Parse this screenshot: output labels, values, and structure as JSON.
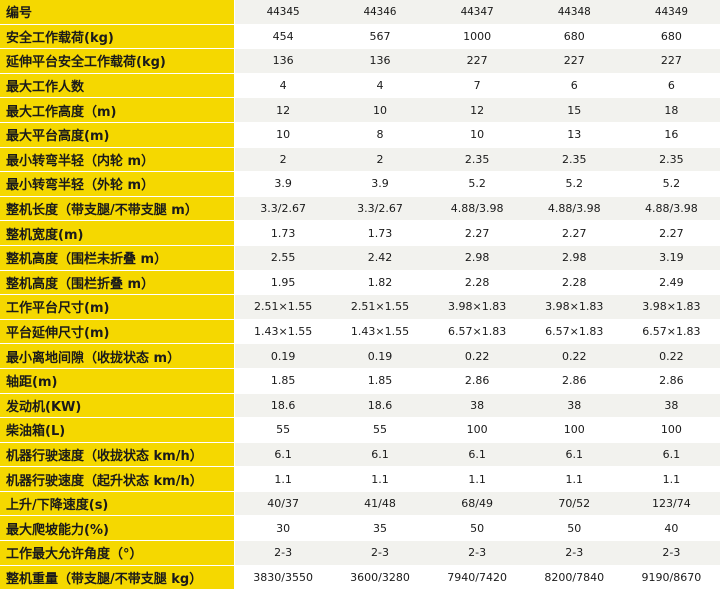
{
  "table": {
    "rows": [
      {
        "label": "编号",
        "values": [
          "44345",
          "44346",
          "44347",
          "44348",
          "44349"
        ]
      },
      {
        "label": "安全工作载荷(kg)",
        "values": [
          "454",
          "567",
          "1000",
          "680",
          "680"
        ]
      },
      {
        "label": "延伸平台安全工作载荷(kg)",
        "values": [
          "136",
          "136",
          "227",
          "227",
          "227"
        ]
      },
      {
        "label": "最大工作人数",
        "values": [
          "4",
          "4",
          "7",
          "6",
          "6"
        ]
      },
      {
        "label": "最大工作高度（m)",
        "values": [
          "12",
          "10",
          "12",
          "15",
          "18"
        ]
      },
      {
        "label": "最大平台高度(m)",
        "values": [
          "10",
          "8",
          "10",
          "13",
          "16"
        ]
      },
      {
        "label": "最小转弯半轻（内轮 m）",
        "values": [
          "2",
          "2",
          "2.35",
          "2.35",
          "2.35"
        ]
      },
      {
        "label": "最小转弯半轻（外轮 m）",
        "values": [
          "3.9",
          "3.9",
          "5.2",
          "5.2",
          "5.2"
        ]
      },
      {
        "label": "整机长度（带支腿/不带支腿 m）",
        "values": [
          "3.3/2.67",
          "3.3/2.67",
          "4.88/3.98",
          "4.88/3.98",
          "4.88/3.98"
        ]
      },
      {
        "label": "整机宽度(m)",
        "values": [
          "1.73",
          "1.73",
          "2.27",
          "2.27",
          "2.27"
        ]
      },
      {
        "label": "整机高度（围栏未折叠 m）",
        "values": [
          "2.55",
          "2.42",
          "2.98",
          "2.98",
          "3.19"
        ]
      },
      {
        "label": "整机高度（围栏折叠 m）",
        "values": [
          "1.95",
          "1.82",
          "2.28",
          "2.28",
          "2.49"
        ]
      },
      {
        "label": "工作平台尺寸(m)",
        "values": [
          "2.51×1.55",
          "2.51×1.55",
          "3.98×1.83",
          "3.98×1.83",
          "3.98×1.83"
        ]
      },
      {
        "label": "平台延伸尺寸(m)",
        "values": [
          "1.43×1.55",
          "1.43×1.55",
          "6.57×1.83",
          "6.57×1.83",
          "6.57×1.83"
        ]
      },
      {
        "label": "最小离地间隙（收拢状态 m）",
        "values": [
          "0.19",
          "0.19",
          "0.22",
          "0.22",
          "0.22"
        ]
      },
      {
        "label": "轴距(m)",
        "values": [
          "1.85",
          "1.85",
          "2.86",
          "2.86",
          "2.86"
        ]
      },
      {
        "label": "发动机(KW)",
        "values": [
          "18.6",
          "18.6",
          "38",
          "38",
          "38"
        ]
      },
      {
        "label": "柴油箱(L)",
        "values": [
          "55",
          "55",
          "100",
          "100",
          "100"
        ]
      },
      {
        "label": "机器行驶速度（收拢状态 km/h）",
        "values": [
          "6.1",
          "6.1",
          "6.1",
          "6.1",
          "6.1"
        ]
      },
      {
        "label": "机器行驶速度（起升状态 km/h）",
        "values": [
          "1.1",
          "1.1",
          "1.1",
          "1.1",
          "1.1"
        ]
      },
      {
        "label": "上升/下降速度(s)",
        "values": [
          "40/37",
          "41/48",
          "68/49",
          "70/52",
          "123/74"
        ]
      },
      {
        "label": "最大爬坡能力(%)",
        "values": [
          "30",
          "35",
          "50",
          "50",
          "40"
        ]
      },
      {
        "label": "工作最大允许角度（°）",
        "values": [
          "2-3",
          "2-3",
          "2-3",
          "2-3",
          "2-3"
        ]
      },
      {
        "label": "整机重量（带支腿/不带支腿 kg）",
        "values": [
          "3830/3550",
          "3600/3280",
          "7940/7420",
          "8200/7840",
          "9190/8670"
        ]
      }
    ]
  }
}
